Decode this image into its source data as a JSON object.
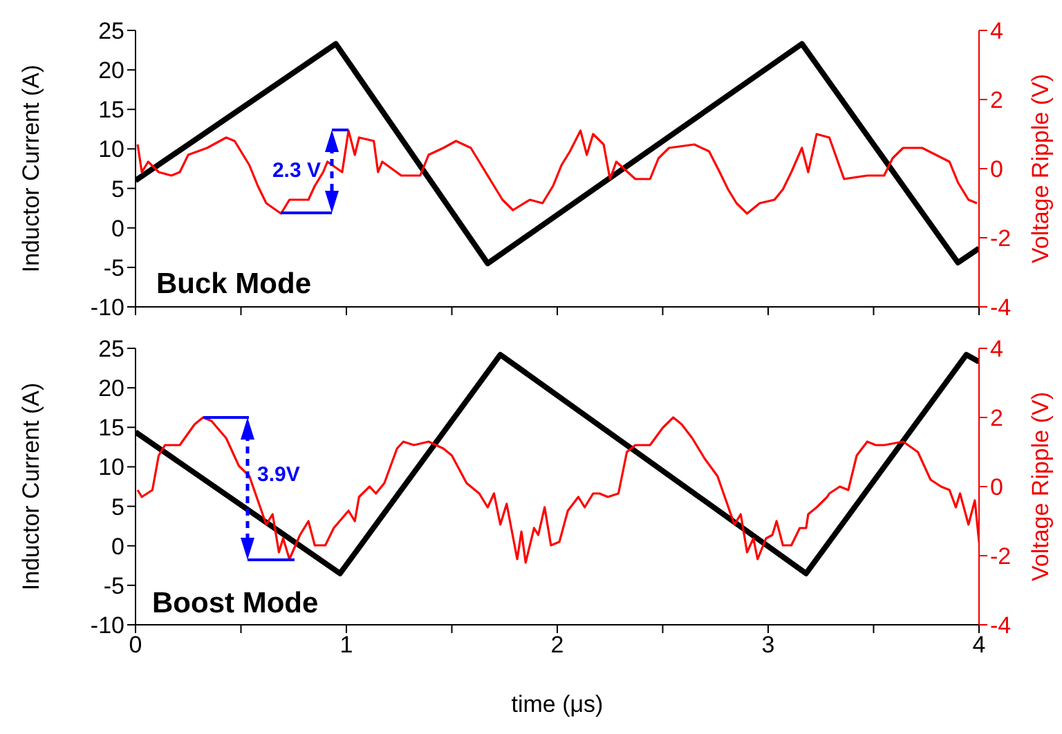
{
  "chart_data": [
    {
      "type": "line",
      "ylabel": "Inductor Current (A)",
      "y2label": "Voltage Ripple (V)",
      "xlim": [
        0,
        4
      ],
      "xticks": [
        0,
        {
          "value": 0.5,
          "label": null
        },
        1,
        {
          "value": 1.5,
          "label": null
        },
        2,
        {
          "value": 2.5,
          "label": null
        },
        3,
        {
          "value": 3.5,
          "label": null
        },
        4
      ],
      "ylim": [
        -10,
        25
      ],
      "yticks": [
        -10,
        -5,
        0,
        5,
        10,
        15,
        20,
        25
      ],
      "y2lim": [
        -4,
        4
      ],
      "y2ticks": [
        -4,
        -2,
        0,
        2,
        4
      ],
      "tick_labels": "y",
      "annotations": [
        "Buck Mode",
        "2.3 V"
      ],
      "series": [
        {
          "color": "#000000",
          "x": [
            0,
            0.95,
            1.67,
            3.16,
            3.9,
            4
          ],
          "values": [
            6,
            23.3,
            -4.5,
            23.3,
            -4.4,
            -2.6
          ]
        },
        {
          "color": "#ff0000",
          "axis": "y2",
          "x": [
            0.01,
            0.03,
            0.06,
            0.11,
            0.17,
            0.21,
            0.25,
            0.34,
            0.43,
            0.47,
            0.54,
            0.58,
            0.62,
            0.69,
            0.73,
            0.82,
            0.85,
            0.89,
            0.91,
            0.98,
            1.01,
            1.04,
            1.06,
            1.13,
            1.15,
            1.17,
            1.26,
            1.35,
            1.39,
            1.46,
            1.52,
            1.59,
            1.63,
            1.7,
            1.74,
            1.79,
            1.87,
            1.93,
            1.98,
            2.02,
            2.06,
            2.11,
            2.14,
            2.17,
            2.22,
            2.25,
            2.28,
            2.37,
            2.44,
            2.48,
            2.53,
            2.65,
            2.72,
            2.77,
            2.81,
            2.85,
            2.9,
            2.96,
            3.03,
            3.07,
            3.11,
            3.16,
            3.19,
            3.23,
            3.29,
            3.36,
            3.47,
            3.55,
            3.59,
            3.64,
            3.73,
            3.86,
            3.9,
            3.95,
            3.99
          ],
          "values": [
            0.7,
            -0.1,
            0.2,
            -0.1,
            -0.2,
            -0.1,
            0.4,
            0.6,
            0.9,
            0.8,
            0.1,
            -0.5,
            -1,
            -1.3,
            -0.9,
            -0.9,
            -0.5,
            -0.1,
            0.2,
            -0.1,
            1.1,
            0.4,
            0.9,
            0.8,
            -0.1,
            0.2,
            -0.2,
            -0.2,
            0.4,
            0.6,
            0.8,
            0.6,
            0.2,
            -0.5,
            -0.9,
            -1.2,
            -0.9,
            -1,
            -0.5,
            0.1,
            0.5,
            1.1,
            0.4,
            1,
            0.7,
            -0.3,
            0.2,
            -0.3,
            -0.3,
            0.3,
            0.6,
            0.7,
            0.5,
            -0.1,
            -0.6,
            -1,
            -1.3,
            -1,
            -0.9,
            -0.6,
            -0.1,
            0.6,
            -0.1,
            1,
            0.9,
            -0.3,
            -0.2,
            -0.2,
            0.3,
            0.6,
            0.6,
            0.2,
            -0.4,
            -0.9,
            -1
          ]
        }
      ]
    },
    {
      "type": "line",
      "xlabel": "time (μs)",
      "ylabel": "Inductor Current (A)",
      "y2label": "Voltage Ripple (V)",
      "xlim": [
        0,
        4
      ],
      "xticks": [
        0,
        {
          "value": 0.5,
          "label": null
        },
        1,
        {
          "value": 1.5,
          "label": null
        },
        2,
        {
          "value": 2.5,
          "label": null
        },
        3,
        {
          "value": 3.5,
          "label": null
        },
        4
      ],
      "ylim": [
        -10,
        25
      ],
      "yticks": [
        -10,
        -5,
        0,
        5,
        10,
        15,
        20,
        25
      ],
      "y2lim": [
        -4,
        4
      ],
      "y2ticks": [
        -4,
        -2,
        0,
        2,
        4
      ],
      "annotations": [
        "Boost Mode",
        "3.9V"
      ],
      "series": [
        {
          "color": "#000000",
          "x": [
            0,
            0.97,
            1.73,
            3.18,
            3.94,
            4
          ],
          "values": [
            14.4,
            -3.5,
            24.2,
            -3.5,
            24.2,
            23.3
          ]
        },
        {
          "color": "#ff0000",
          "axis": "y2",
          "x": [
            0.01,
            0.03,
            0.08,
            0.11,
            0.14,
            0.21,
            0.28,
            0.32,
            0.36,
            0.43,
            0.49,
            0.54,
            0.58,
            0.62,
            0.65,
            0.68,
            0.7,
            0.73,
            0.78,
            0.82,
            0.85,
            0.9,
            0.94,
            1.01,
            1.04,
            1.06,
            1.11,
            1.14,
            1.18,
            1.24,
            1.27,
            1.32,
            1.39,
            1.46,
            1.5,
            1.57,
            1.63,
            1.67,
            1.7,
            1.73,
            1.76,
            1.81,
            1.83,
            1.85,
            1.89,
            1.91,
            1.94,
            1.97,
            2.01,
            2.05,
            2.1,
            2.13,
            2.17,
            2.2,
            2.24,
            2.29,
            2.33,
            2.37,
            2.44,
            2.5,
            2.55,
            2.59,
            2.64,
            2.7,
            2.76,
            2.8,
            2.84,
            2.87,
            2.9,
            2.93,
            2.95,
            2.99,
            3.02,
            3.04,
            3.07,
            3.11,
            3.15,
            3.18,
            3.19,
            3.23,
            3.28,
            3.29,
            3.34,
            3.38,
            3.42,
            3.47,
            3.51,
            3.55,
            3.64,
            3.71,
            3.77,
            3.82,
            3.86,
            3.89,
            3.91,
            3.95,
            3.98,
            4
          ],
          "values": [
            -0.1,
            -0.3,
            -0.1,
            0.9,
            1.2,
            1.2,
            1.8,
            2,
            1.9,
            1.4,
            0.6,
            0.3,
            -0.4,
            -1.1,
            -0.8,
            -1.9,
            -1.5,
            -2.1,
            -1.4,
            -1,
            -1.7,
            -1.7,
            -1.2,
            -0.7,
            -1,
            -0.3,
            0,
            -0.2,
            0.1,
            1.1,
            1.3,
            1.2,
            1.3,
            1.1,
            0.9,
            0.1,
            -0.2,
            -0.6,
            -0.2,
            -1.1,
            -0.5,
            -2.1,
            -1.3,
            -2.2,
            -1.2,
            -1.4,
            -0.6,
            -1.7,
            -1.6,
            -0.7,
            -0.3,
            -0.6,
            -0.2,
            -0.2,
            -0.3,
            -0.2,
            1,
            1.2,
            1.2,
            1.7,
            2,
            1.8,
            1.4,
            0.8,
            0.3,
            -0.4,
            -1.1,
            -0.8,
            -1.9,
            -1.5,
            -2.1,
            -1.5,
            -1.4,
            -1,
            -1.7,
            -1.7,
            -1.2,
            -1.2,
            -0.8,
            -0.6,
            -0.3,
            -0.2,
            0,
            -0.1,
            0.9,
            1.3,
            1.2,
            1.2,
            1.3,
            1,
            0.2,
            0,
            -0.1,
            -0.6,
            -0.2,
            -1.1,
            -0.4,
            -1.6
          ]
        }
      ]
    }
  ]
}
